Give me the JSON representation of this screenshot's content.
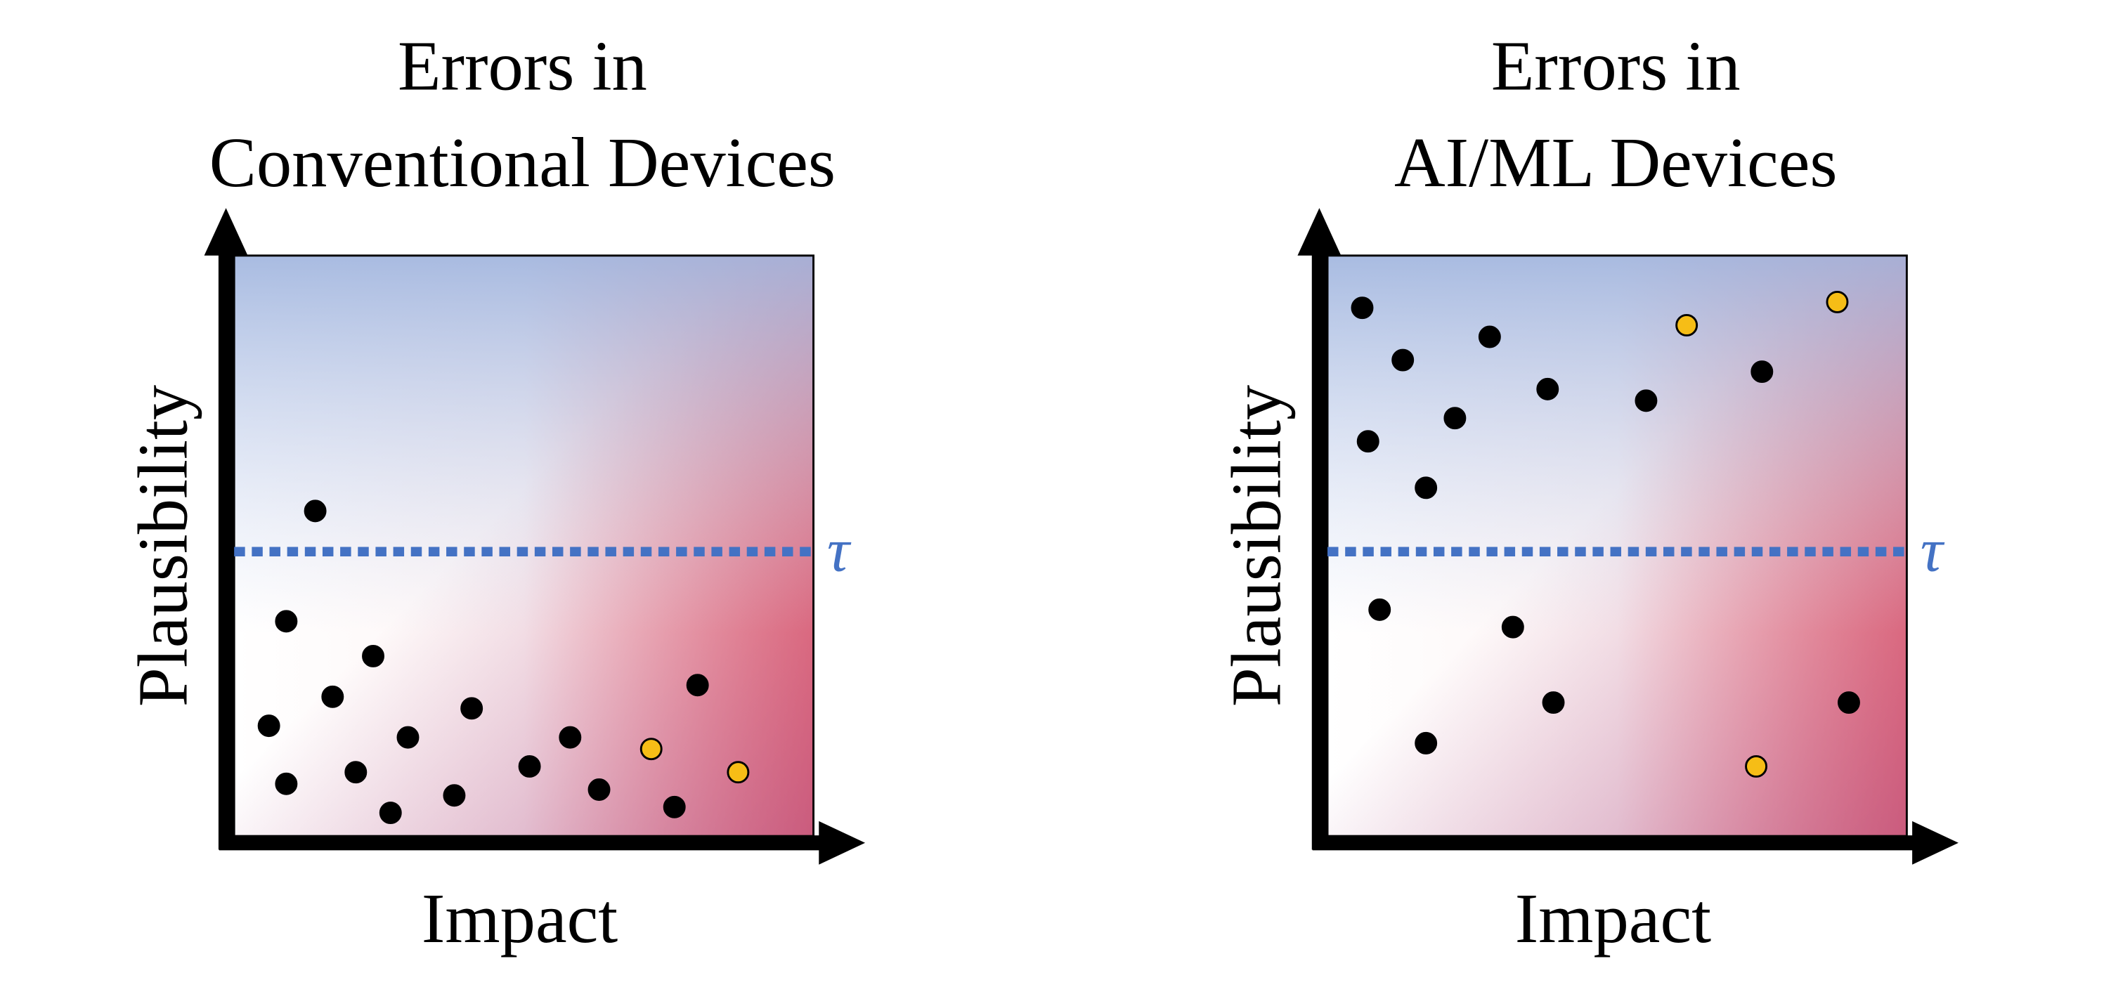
{
  "chart_data": [
    {
      "type": "scatter",
      "title": [
        "Errors in",
        "Conventional Devices"
      ],
      "x_label": "Impact",
      "y_label": "Plausibility",
      "xlim": [
        0,
        1
      ],
      "ylim": [
        0,
        1
      ],
      "threshold": {
        "value": 0.49,
        "label": "τ",
        "color": "#4472c4"
      },
      "series": [
        {
          "color": "#000000",
          "x": [
            0.14,
            0.09,
            0.24,
            0.17,
            0.06,
            0.41,
            0.3,
            0.58,
            0.21,
            0.51,
            0.09,
            0.38,
            0.63,
            0.27,
            0.76,
            0.8
          ],
          "values": [
            0.56,
            0.37,
            0.31,
            0.24,
            0.19,
            0.22,
            0.17,
            0.17,
            0.11,
            0.12,
            0.09,
            0.07,
            0.08,
            0.04,
            0.05,
            0.26
          ]
        },
        {
          "color": "#f6bd16",
          "x": [
            0.72,
            0.87
          ],
          "values": [
            0.15,
            0.11
          ]
        }
      ]
    },
    {
      "type": "scatter",
      "title": [
        "Errors in",
        "AI/ML Devices"
      ],
      "x_label": "Impact",
      "y_label": "Plausibility",
      "xlim": [
        0,
        1
      ],
      "ylim": [
        0,
        1
      ],
      "threshold": {
        "value": 0.49,
        "label": "τ",
        "color": "#4472c4"
      },
      "series": [
        {
          "color": "#000000",
          "x": [
            0.06,
            0.13,
            0.28,
            0.07,
            0.22,
            0.38,
            0.55,
            0.75,
            0.17,
            0.09,
            0.32,
            0.39,
            0.17,
            0.9
          ],
          "values": [
            0.91,
            0.82,
            0.86,
            0.68,
            0.72,
            0.77,
            0.75,
            0.8,
            0.6,
            0.39,
            0.36,
            0.23,
            0.16,
            0.23
          ]
        },
        {
          "color": "#f6bd16",
          "x": [
            0.62,
            0.88,
            0.74
          ],
          "values": [
            0.88,
            0.92,
            0.12
          ]
        }
      ]
    }
  ]
}
